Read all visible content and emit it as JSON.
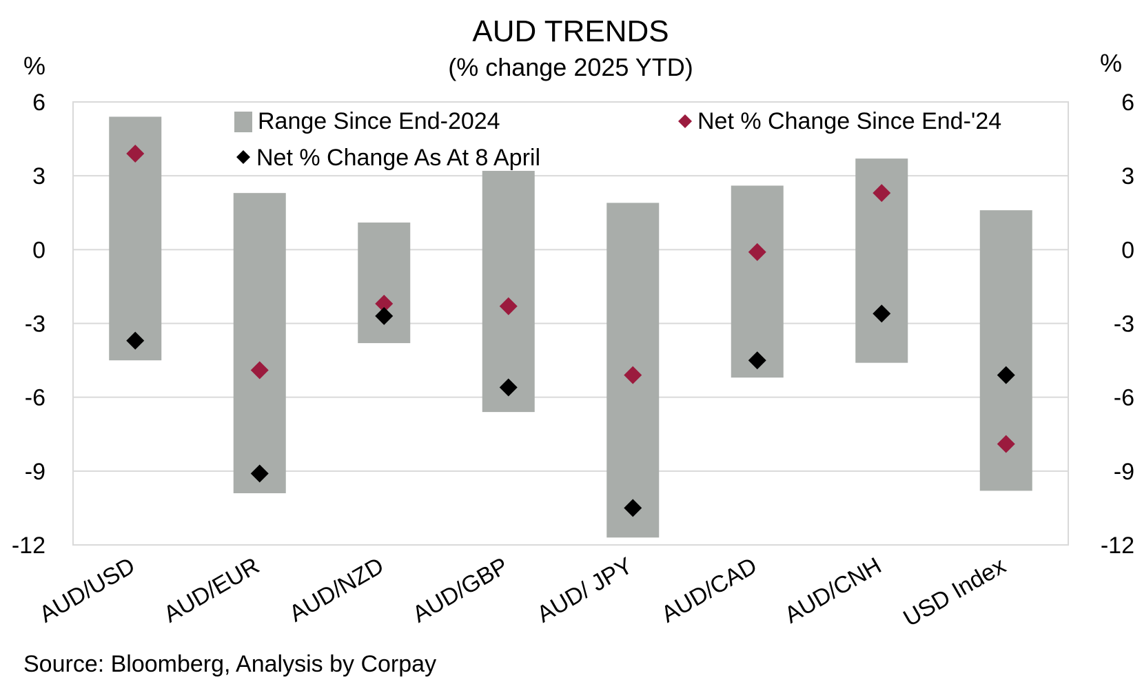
{
  "chart_data": {
    "type": "bar",
    "title": "AUD TRENDS",
    "subtitle": "(% change 2025 YTD)",
    "y_unit_left": "%",
    "y_unit_right": "%",
    "ylim": [
      -12,
      6
    ],
    "yticks": [
      6,
      3,
      0,
      -3,
      -6,
      -9,
      -12
    ],
    "categories": [
      "AUD/USD",
      "AUD/EUR",
      "AUD/NZD",
      "AUD/GBP",
      "AUD/ JPY",
      "AUD/CAD",
      "AUD/CNH",
      "USD Index"
    ],
    "series": [
      {
        "name": "Range Since End-2024",
        "kind": "floating-bar",
        "color": "#a9adaa",
        "high": [
          5.4,
          2.3,
          1.1,
          3.2,
          1.9,
          2.6,
          3.7,
          1.6
        ],
        "low": [
          -4.5,
          -9.9,
          -3.8,
          -6.6,
          -11.7,
          -5.2,
          -4.6,
          -9.8
        ]
      },
      {
        "name": "Net % Change Since End-'24",
        "kind": "marker",
        "color": "#9b1b3e",
        "values": [
          3.9,
          -4.9,
          -2.2,
          -2.3,
          -5.1,
          -0.1,
          2.3,
          -7.9
        ]
      },
      {
        "name": "Net % Change As At 8 April",
        "kind": "marker",
        "color": "#000000",
        "values": [
          -3.7,
          -9.1,
          -2.7,
          -5.6,
          -10.5,
          -4.5,
          -2.6,
          -5.1
        ]
      }
    ],
    "grid": true,
    "legend_position": "top-inside",
    "source": "Source: Bloomberg, Analysis by Corpay",
    "title_color": "#8c1a3d"
  }
}
